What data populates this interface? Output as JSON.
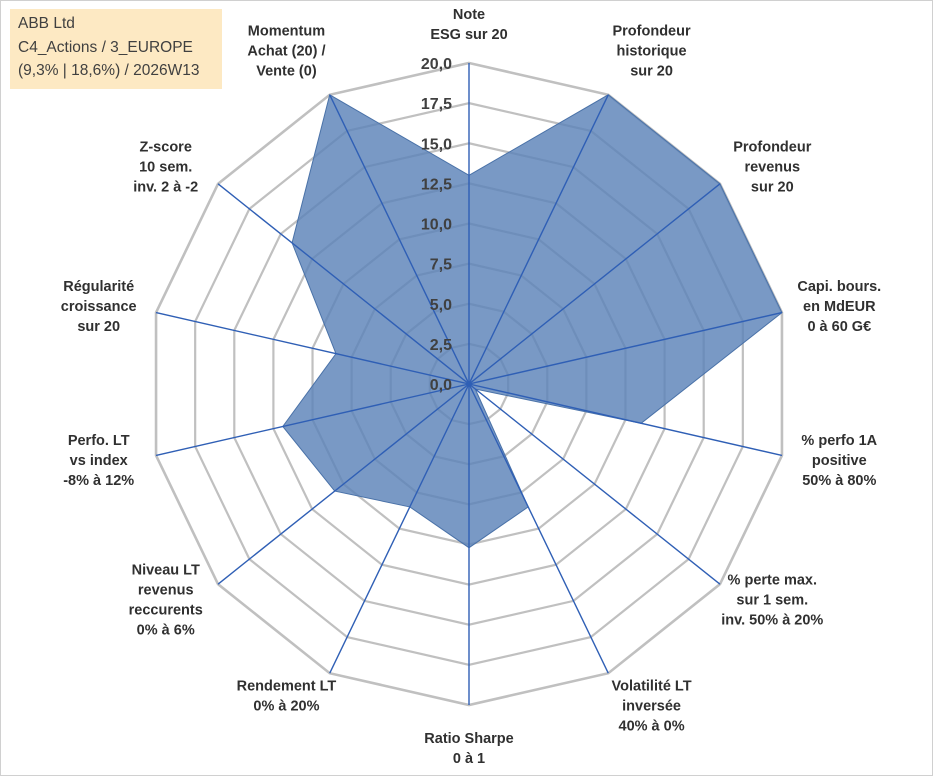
{
  "info_box": {
    "line1": "ABB Ltd",
    "line2": "C4_Actions / 3_EUROPE",
    "line3": "(9,3% | 18,6%) / 2026W13"
  },
  "colors": {
    "fill": "#5b83b8",
    "line": "#2f5fb5",
    "grid": "#c0c0c0",
    "info_bg": "#fde9c3"
  },
  "chart_data": {
    "type": "radar",
    "title": "",
    "range": [
      0,
      20
    ],
    "ticks": [
      "0,0",
      "2,5",
      "5,0",
      "7,5",
      "10,0",
      "12,5",
      "15,0",
      "17,5",
      "20,0"
    ],
    "tick_values": [
      0,
      2.5,
      5,
      7.5,
      10,
      12.5,
      15,
      17.5,
      20
    ],
    "axes": [
      {
        "label": [
          "Note",
          "ESG sur 20"
        ],
        "value": 13
      },
      {
        "label": [
          "Profondeur",
          "historique",
          "sur 20"
        ],
        "value": 20
      },
      {
        "label": [
          "Profondeur",
          "revenus",
          "sur 20"
        ],
        "value": 20
      },
      {
        "label": [
          "Capi. bours.",
          "en MdEUR",
          "0 à 60 G€"
        ],
        "value": 20
      },
      {
        "label": [
          "% perfo 1A",
          "positive",
          "50% à 80%"
        ],
        "value": 11
      },
      {
        "label": [
          "% perte max.",
          "sur 1 sem.",
          "inv. 50% à 20%"
        ],
        "value": 0.5
      },
      {
        "label": [
          "Volatilité LT",
          "inversée",
          "40% à 0%"
        ],
        "value": 8.5
      },
      {
        "label": [
          "Ratio Sharpe",
          "0 à 1"
        ],
        "value": 10.2
      },
      {
        "label": [
          "Rendement LT",
          "0% à 20%"
        ],
        "value": 8.5
      },
      {
        "label": [
          "Niveau LT",
          "revenus",
          "reccurents",
          "0% à 6%"
        ],
        "value": 10.7
      },
      {
        "label": [
          "Perfo. LT",
          "vs index",
          "-8% à 12%"
        ],
        "value": 11.9
      },
      {
        "label": [
          "Régularité",
          "croissance",
          "sur 20"
        ],
        "value": 8.5
      },
      {
        "label": [
          "Z-score",
          "10 sem.",
          "inv. 2 à -2"
        ],
        "value": 14.1
      },
      {
        "label": [
          "Momentum",
          "Achat (20) /",
          "Vente (0)"
        ],
        "value": 20
      }
    ]
  }
}
